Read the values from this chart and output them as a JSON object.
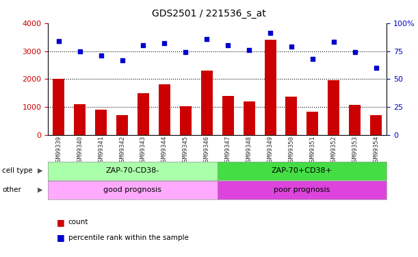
{
  "title": "GDS2501 / 221536_s_at",
  "samples": [
    "GSM99339",
    "GSM99340",
    "GSM99341",
    "GSM99342",
    "GSM99343",
    "GSM99344",
    "GSM99345",
    "GSM99346",
    "GSM99347",
    "GSM99348",
    "GSM99349",
    "GSM99350",
    "GSM99351",
    "GSM99352",
    "GSM99353",
    "GSM99354"
  ],
  "counts": [
    2000,
    1100,
    900,
    700,
    1500,
    1800,
    1020,
    2300,
    1400,
    1200,
    3400,
    1380,
    830,
    1970,
    1080,
    700
  ],
  "percentiles": [
    84,
    75,
    71,
    67,
    80,
    82,
    74,
    86,
    80,
    76,
    91,
    79,
    68,
    83,
    74,
    60
  ],
  "bar_color": "#cc0000",
  "dot_color": "#0000cc",
  "ylim_left": [
    0,
    4000
  ],
  "ylim_right": [
    0,
    100
  ],
  "yticks_left": [
    0,
    1000,
    2000,
    3000,
    4000
  ],
  "yticks_right": [
    0,
    25,
    50,
    75,
    100
  ],
  "yticklabels_right": [
    "0",
    "25",
    "50",
    "75",
    "100%"
  ],
  "grid_values": [
    1000,
    2000,
    3000
  ],
  "cell_type_labels": [
    "ZAP-70-CD38-",
    "ZAP-70+CD38+"
  ],
  "other_labels": [
    "good prognosis",
    "poor prognosis"
  ],
  "cell_type_color_left": "#aaffaa",
  "cell_type_color_right": "#44dd44",
  "other_color_left": "#ffaaff",
  "other_color_right": "#dd44dd",
  "split_index": 8,
  "legend_count_label": "count",
  "legend_pct_label": "percentile rank within the sample",
  "cell_type_row_label": "cell type",
  "other_row_label": "other",
  "left_axis_color": "#cc0000",
  "right_axis_color": "#0000cc",
  "plot_bg_color": "#ffffff",
  "fig_bg_color": "#ffffff"
}
